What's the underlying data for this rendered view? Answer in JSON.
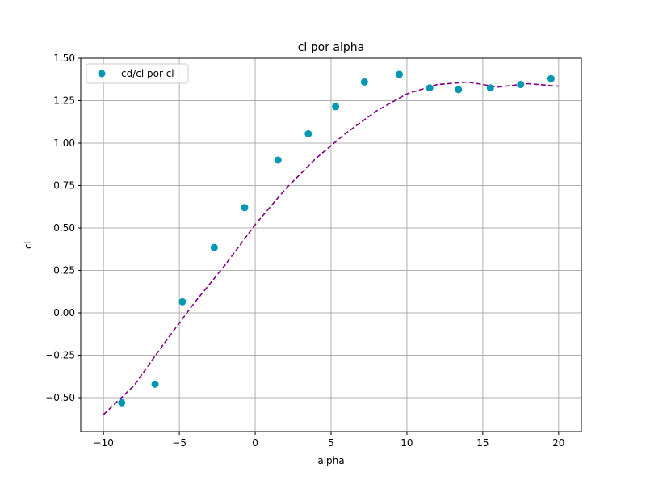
{
  "chart_data": {
    "type": "scatter",
    "title": "cl por alpha",
    "xlabel": "alpha",
    "ylabel": "cl",
    "xlim": [
      -11.5,
      21.5
    ],
    "ylim": [
      -0.7,
      1.5
    ],
    "grid": true,
    "legend_position": "upper-left",
    "x_ticks": [
      -10,
      -5,
      0,
      5,
      10,
      15,
      20
    ],
    "x_tick_labels": [
      "−10",
      "−5",
      "0",
      "5",
      "10",
      "15",
      "20"
    ],
    "y_ticks": [
      -0.5,
      -0.25,
      0,
      0.25,
      0.5,
      0.75,
      1.0,
      1.25,
      1.5
    ],
    "y_tick_labels": [
      "−0.50",
      "−0.25",
      "0.00",
      "0.25",
      "0.50",
      "0.75",
      "1.00",
      "1.25",
      "1.50"
    ],
    "series": [
      {
        "name": "cd/cl por cl",
        "kind": "scatter",
        "color": "#0097b2",
        "x": [
          -8.8,
          -6.6,
          -4.8,
          -2.7,
          -0.7,
          1.5,
          3.5,
          5.3,
          7.2,
          9.5,
          11.5,
          13.4,
          15.5,
          17.5,
          19.5
        ],
        "y": [
          -0.53,
          -0.42,
          0.065,
          0.385,
          0.62,
          0.9,
          1.055,
          1.215,
          1.36,
          1.405,
          1.325,
          1.315,
          1.325,
          1.345,
          1.38
        ]
      },
      {
        "kind": "line",
        "style": "dashed",
        "color": "#800080",
        "x": [
          -10,
          -8,
          -6,
          -4,
          -2,
          0,
          2,
          4,
          6,
          8,
          10,
          12,
          14,
          16,
          18,
          20
        ],
        "y": [
          -0.6,
          -0.43,
          -0.18,
          0.06,
          0.28,
          0.52,
          0.73,
          0.91,
          1.06,
          1.19,
          1.29,
          1.345,
          1.36,
          1.33,
          1.35,
          1.335
        ]
      }
    ]
  }
}
